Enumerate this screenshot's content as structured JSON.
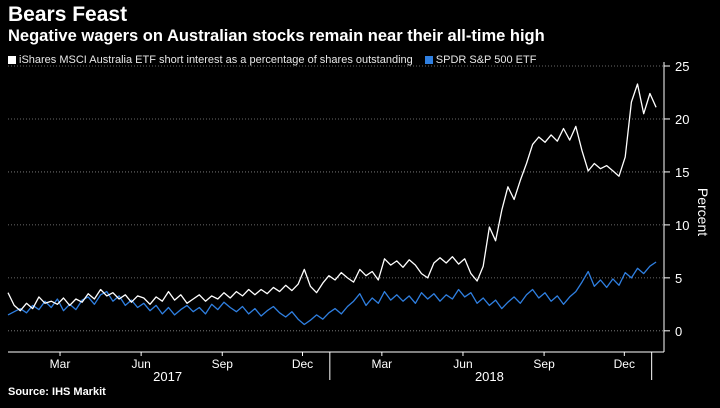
{
  "title": "Bears Feast",
  "subtitle": "Negative wagers on Australian stocks remain near their all-time high",
  "source": "Source: IHS Markit",
  "colors": {
    "background": "#000000",
    "series_a": "#ffffff",
    "series_b": "#2f7fe0",
    "grid": "#8a8a8a"
  },
  "chart_data": {
    "type": "line",
    "ylabel": "Percent",
    "ylim": [
      -2,
      25
    ],
    "yticks": [
      0,
      5,
      10,
      15,
      20,
      25
    ],
    "x_range": [
      "2017-01-01",
      "2019-01-15"
    ],
    "month_ticks": [
      {
        "label": "Mar",
        "date": "2017-03-01"
      },
      {
        "label": "Jun",
        "date": "2017-06-01"
      },
      {
        "label": "Sep",
        "date": "2017-09-01"
      },
      {
        "label": "Dec",
        "date": "2017-12-01"
      },
      {
        "label": "Mar",
        "date": "2018-03-01"
      },
      {
        "label": "Jun",
        "date": "2018-06-01"
      },
      {
        "label": "Sep",
        "date": "2018-09-01"
      },
      {
        "label": "Dec",
        "date": "2018-12-01"
      }
    ],
    "year_labels": [
      {
        "label": "2017",
        "date": "2017-07-01"
      },
      {
        "label": "2018",
        "date": "2018-07-01"
      }
    ],
    "year_dividers": [
      "2018-01-01",
      "2019-01-01"
    ],
    "series": [
      {
        "name": "iShares MSCI Australia ETF short interest as a percentage of shares outstanding",
        "color": "#ffffff",
        "points": [
          [
            "2017-01-01",
            3.6
          ],
          [
            "2017-01-08",
            2.4
          ],
          [
            "2017-01-15",
            1.9
          ],
          [
            "2017-01-22",
            2.6
          ],
          [
            "2017-01-29",
            2.1
          ],
          [
            "2017-02-05",
            3.2
          ],
          [
            "2017-02-12",
            2.6
          ],
          [
            "2017-02-19",
            2.8
          ],
          [
            "2017-02-26",
            2.5
          ],
          [
            "2017-03-05",
            3.1
          ],
          [
            "2017-03-12",
            2.4
          ],
          [
            "2017-03-19",
            3.0
          ],
          [
            "2017-03-26",
            2.7
          ],
          [
            "2017-04-02",
            3.5
          ],
          [
            "2017-04-09",
            3.0
          ],
          [
            "2017-04-16",
            3.9
          ],
          [
            "2017-04-23",
            3.3
          ],
          [
            "2017-04-30",
            3.6
          ],
          [
            "2017-05-07",
            3.0
          ],
          [
            "2017-05-14",
            3.4
          ],
          [
            "2017-05-21",
            2.7
          ],
          [
            "2017-05-28",
            3.3
          ],
          [
            "2017-06-04",
            3.1
          ],
          [
            "2017-06-11",
            2.5
          ],
          [
            "2017-06-18",
            3.2
          ],
          [
            "2017-06-25",
            2.8
          ],
          [
            "2017-07-02",
            3.7
          ],
          [
            "2017-07-09",
            2.9
          ],
          [
            "2017-07-16",
            3.4
          ],
          [
            "2017-07-23",
            2.6
          ],
          [
            "2017-07-30",
            3.0
          ],
          [
            "2017-08-06",
            3.4
          ],
          [
            "2017-08-13",
            2.8
          ],
          [
            "2017-08-20",
            3.3
          ],
          [
            "2017-08-27",
            3.0
          ],
          [
            "2017-09-03",
            3.6
          ],
          [
            "2017-09-10",
            3.1
          ],
          [
            "2017-09-17",
            3.7
          ],
          [
            "2017-09-24",
            3.3
          ],
          [
            "2017-10-01",
            3.9
          ],
          [
            "2017-10-08",
            3.4
          ],
          [
            "2017-10-15",
            3.9
          ],
          [
            "2017-10-22",
            3.5
          ],
          [
            "2017-10-29",
            4.1
          ],
          [
            "2017-11-05",
            3.7
          ],
          [
            "2017-11-12",
            4.3
          ],
          [
            "2017-11-19",
            3.8
          ],
          [
            "2017-11-26",
            4.4
          ],
          [
            "2017-12-03",
            5.8
          ],
          [
            "2017-12-10",
            4.2
          ],
          [
            "2017-12-17",
            3.6
          ],
          [
            "2017-12-24",
            4.5
          ],
          [
            "2017-12-31",
            5.2
          ],
          [
            "2018-01-07",
            4.8
          ],
          [
            "2018-01-14",
            5.5
          ],
          [
            "2018-01-21",
            5.0
          ],
          [
            "2018-01-28",
            4.6
          ],
          [
            "2018-02-04",
            5.8
          ],
          [
            "2018-02-11",
            5.2
          ],
          [
            "2018-02-18",
            5.6
          ],
          [
            "2018-02-25",
            4.8
          ],
          [
            "2018-03-04",
            6.8
          ],
          [
            "2018-03-11",
            6.2
          ],
          [
            "2018-03-18",
            6.6
          ],
          [
            "2018-03-25",
            6.0
          ],
          [
            "2018-04-01",
            6.7
          ],
          [
            "2018-04-08",
            6.2
          ],
          [
            "2018-04-15",
            5.4
          ],
          [
            "2018-04-22",
            5.0
          ],
          [
            "2018-04-29",
            6.4
          ],
          [
            "2018-05-06",
            6.9
          ],
          [
            "2018-05-13",
            6.4
          ],
          [
            "2018-05-20",
            7.0
          ],
          [
            "2018-05-27",
            6.3
          ],
          [
            "2018-06-03",
            6.8
          ],
          [
            "2018-06-10",
            5.4
          ],
          [
            "2018-06-17",
            4.7
          ],
          [
            "2018-06-24",
            6.1
          ],
          [
            "2018-07-01",
            9.8
          ],
          [
            "2018-07-08",
            8.5
          ],
          [
            "2018-07-15",
            11.4
          ],
          [
            "2018-07-22",
            13.6
          ],
          [
            "2018-07-29",
            12.4
          ],
          [
            "2018-08-05",
            14.2
          ],
          [
            "2018-08-12",
            15.8
          ],
          [
            "2018-08-19",
            17.6
          ],
          [
            "2018-08-26",
            18.3
          ],
          [
            "2018-09-02",
            17.8
          ],
          [
            "2018-09-09",
            18.5
          ],
          [
            "2018-09-16",
            17.9
          ],
          [
            "2018-09-23",
            19.1
          ],
          [
            "2018-09-30",
            18.0
          ],
          [
            "2018-10-07",
            19.3
          ],
          [
            "2018-10-14",
            17.0
          ],
          [
            "2018-10-21",
            15.1
          ],
          [
            "2018-10-28",
            15.8
          ],
          [
            "2018-11-04",
            15.3
          ],
          [
            "2018-11-11",
            15.6
          ],
          [
            "2018-11-18",
            15.1
          ],
          [
            "2018-11-25",
            14.6
          ],
          [
            "2018-12-02",
            16.4
          ],
          [
            "2018-12-09",
            21.6
          ],
          [
            "2018-12-16",
            23.3
          ],
          [
            "2018-12-23",
            20.5
          ],
          [
            "2018-12-30",
            22.4
          ],
          [
            "2019-01-06",
            21.1
          ]
        ]
      },
      {
        "name": "SPDR S&P 500 ETF",
        "color": "#2f7fe0",
        "points": [
          [
            "2017-01-01",
            1.5
          ],
          [
            "2017-01-08",
            1.8
          ],
          [
            "2017-01-15",
            2.1
          ],
          [
            "2017-01-22",
            1.7
          ],
          [
            "2017-01-29",
            2.4
          ],
          [
            "2017-02-05",
            2.0
          ],
          [
            "2017-02-12",
            2.8
          ],
          [
            "2017-02-19",
            2.2
          ],
          [
            "2017-02-26",
            3.0
          ],
          [
            "2017-03-05",
            1.9
          ],
          [
            "2017-03-12",
            2.5
          ],
          [
            "2017-03-19",
            2.0
          ],
          [
            "2017-03-26",
            2.9
          ],
          [
            "2017-04-02",
            3.2
          ],
          [
            "2017-04-09",
            2.5
          ],
          [
            "2017-04-16",
            3.4
          ],
          [
            "2017-04-23",
            3.7
          ],
          [
            "2017-04-30",
            2.8
          ],
          [
            "2017-05-07",
            3.3
          ],
          [
            "2017-05-14",
            2.4
          ],
          [
            "2017-05-21",
            2.9
          ],
          [
            "2017-05-28",
            2.2
          ],
          [
            "2017-06-04",
            2.6
          ],
          [
            "2017-06-11",
            1.9
          ],
          [
            "2017-06-18",
            2.4
          ],
          [
            "2017-06-25",
            1.6
          ],
          [
            "2017-07-02",
            2.2
          ],
          [
            "2017-07-09",
            1.5
          ],
          [
            "2017-07-16",
            2.0
          ],
          [
            "2017-07-23",
            2.4
          ],
          [
            "2017-07-30",
            1.8
          ],
          [
            "2017-08-06",
            2.2
          ],
          [
            "2017-08-13",
            1.6
          ],
          [
            "2017-08-20",
            2.5
          ],
          [
            "2017-08-27",
            2.0
          ],
          [
            "2017-09-03",
            2.7
          ],
          [
            "2017-09-10",
            2.2
          ],
          [
            "2017-09-17",
            1.8
          ],
          [
            "2017-09-24",
            2.3
          ],
          [
            "2017-10-01",
            1.6
          ],
          [
            "2017-10-08",
            2.1
          ],
          [
            "2017-10-15",
            1.4
          ],
          [
            "2017-10-22",
            1.9
          ],
          [
            "2017-10-29",
            2.3
          ],
          [
            "2017-11-05",
            1.7
          ],
          [
            "2017-11-12",
            1.3
          ],
          [
            "2017-11-19",
            1.8
          ],
          [
            "2017-11-26",
            1.1
          ],
          [
            "2017-12-03",
            0.6
          ],
          [
            "2017-12-10",
            1.0
          ],
          [
            "2017-12-17",
            1.5
          ],
          [
            "2017-12-24",
            1.1
          ],
          [
            "2017-12-31",
            1.7
          ],
          [
            "2018-01-07",
            2.1
          ],
          [
            "2018-01-14",
            1.6
          ],
          [
            "2018-01-21",
            2.3
          ],
          [
            "2018-01-28",
            2.8
          ],
          [
            "2018-02-04",
            3.5
          ],
          [
            "2018-02-11",
            2.4
          ],
          [
            "2018-02-18",
            3.1
          ],
          [
            "2018-02-25",
            2.6
          ],
          [
            "2018-03-04",
            3.7
          ],
          [
            "2018-03-11",
            2.9
          ],
          [
            "2018-03-18",
            3.4
          ],
          [
            "2018-03-25",
            2.8
          ],
          [
            "2018-04-01",
            3.3
          ],
          [
            "2018-04-08",
            2.6
          ],
          [
            "2018-04-15",
            3.6
          ],
          [
            "2018-04-22",
            3.0
          ],
          [
            "2018-04-29",
            3.5
          ],
          [
            "2018-05-06",
            2.8
          ],
          [
            "2018-05-13",
            3.4
          ],
          [
            "2018-05-20",
            3.0
          ],
          [
            "2018-05-27",
            3.9
          ],
          [
            "2018-06-03",
            3.2
          ],
          [
            "2018-06-10",
            3.6
          ],
          [
            "2018-06-17",
            2.6
          ],
          [
            "2018-06-24",
            3.1
          ],
          [
            "2018-07-01",
            2.4
          ],
          [
            "2018-07-08",
            2.9
          ],
          [
            "2018-07-15",
            2.1
          ],
          [
            "2018-07-22",
            2.7
          ],
          [
            "2018-07-29",
            3.2
          ],
          [
            "2018-08-05",
            2.6
          ],
          [
            "2018-08-12",
            3.4
          ],
          [
            "2018-08-19",
            3.9
          ],
          [
            "2018-08-26",
            3.1
          ],
          [
            "2018-09-02",
            3.6
          ],
          [
            "2018-09-09",
            2.8
          ],
          [
            "2018-09-16",
            3.3
          ],
          [
            "2018-09-23",
            2.5
          ],
          [
            "2018-09-30",
            3.2
          ],
          [
            "2018-10-07",
            3.7
          ],
          [
            "2018-10-14",
            4.6
          ],
          [
            "2018-10-21",
            5.6
          ],
          [
            "2018-10-28",
            4.2
          ],
          [
            "2018-11-04",
            4.8
          ],
          [
            "2018-11-11",
            4.1
          ],
          [
            "2018-11-18",
            4.9
          ],
          [
            "2018-11-25",
            4.3
          ],
          [
            "2018-12-02",
            5.5
          ],
          [
            "2018-12-09",
            5.0
          ],
          [
            "2018-12-16",
            5.9
          ],
          [
            "2018-12-23",
            5.4
          ],
          [
            "2018-12-30",
            6.1
          ],
          [
            "2019-01-06",
            6.5
          ]
        ]
      }
    ]
  }
}
